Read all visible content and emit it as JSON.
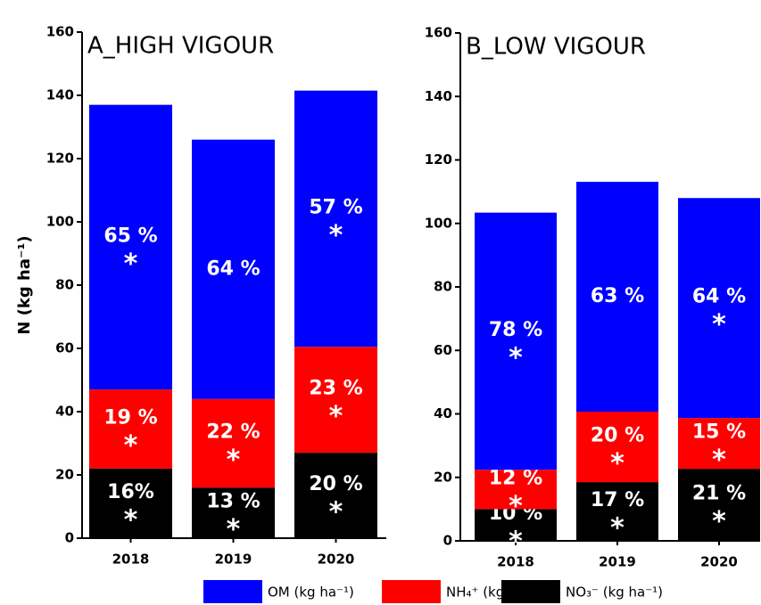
{
  "chart_data": [
    {
      "type": "stacked_bar",
      "title": "A_HIGH VIGOUR",
      "ylabel": "N (kg ha⁻¹)",
      "categories": [
        "2018",
        "2019",
        "2020"
      ],
      "ylim": [
        0,
        160
      ],
      "yticks": [
        0,
        20,
        40,
        60,
        80,
        100,
        120,
        140,
        160
      ],
      "series": [
        {
          "name": "NO₃⁻ (kg ha⁻¹)",
          "color": "#000000",
          "values": [
            22,
            16,
            27
          ],
          "percent_labels": [
            "16%",
            "13 %",
            "20 %"
          ],
          "significance": [
            "*",
            "*",
            "*"
          ]
        },
        {
          "name": "NH₄⁺ (kg ha⁻¹)",
          "color": "#ff0000",
          "values": [
            25,
            28,
            33.5
          ],
          "percent_labels": [
            "19 %",
            "22 %",
            "23 %"
          ],
          "significance": [
            "*",
            "*",
            "*"
          ]
        },
        {
          "name": "OM (kg ha⁻¹)",
          "color": "#0000ff",
          "values": [
            90,
            82,
            81
          ],
          "percent_labels": [
            "65 %",
            "64 %",
            "57 %"
          ],
          "significance": [
            "*",
            null,
            "*"
          ]
        }
      ]
    },
    {
      "type": "stacked_bar",
      "title": "B_LOW VIGOUR",
      "categories": [
        "2018",
        "2019",
        "2020"
      ],
      "ylim": [
        0,
        160
      ],
      "yticks": [
        0,
        20,
        40,
        60,
        80,
        100,
        120,
        140,
        160
      ],
      "series": [
        {
          "values": [
            10,
            18.5,
            22.7
          ],
          "percent_labels": [
            "10 %",
            "17 %",
            "21 %"
          ],
          "significance": [
            "*",
            "*",
            "*"
          ]
        },
        {
          "values": [
            12.4,
            22.2,
            16
          ],
          "percent_labels": [
            "12 %",
            "20 %",
            "15 %"
          ],
          "significance": [
            "*",
            "*",
            "*"
          ]
        },
        {
          "values": [
            81,
            72.4,
            69.3
          ],
          "percent_labels": [
            "78 %",
            "63 %",
            "64 %"
          ],
          "significance": [
            "*",
            null,
            "*"
          ]
        }
      ]
    }
  ]
}
